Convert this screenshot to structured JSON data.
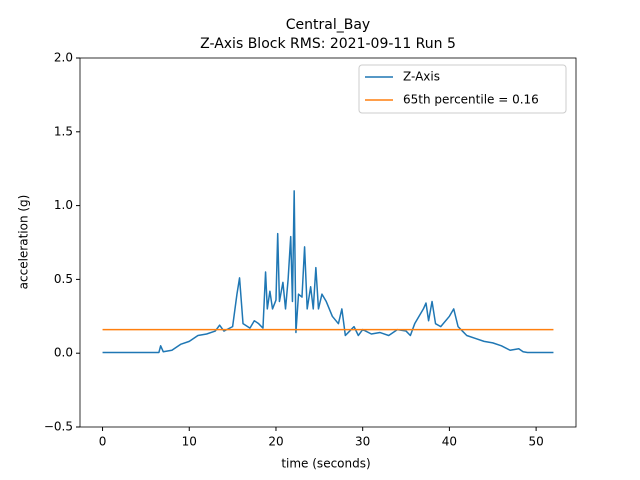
{
  "chart_data": {
    "type": "line",
    "title": "Central_Bay",
    "subtitle": "Z-Axis Block RMS: 2021-09-11 Run 5",
    "x_label": "time (seconds)",
    "y_label": "acceleration (g)",
    "xlim": [
      -2.6,
      54.6
    ],
    "ylim": [
      -0.5,
      2.0
    ],
    "xticks": [
      0,
      10,
      20,
      30,
      40,
      50
    ],
    "yticks": [
      {
        "value": -0.5,
        "label": "−0.5"
      },
      {
        "value": 0,
        "label": "0.0"
      },
      {
        "value": 0.5,
        "label": "0.5"
      },
      {
        "value": 1,
        "label": "1.0"
      },
      {
        "value": 1.5,
        "label": "1.5"
      },
      {
        "value": 2,
        "label": "2.0"
      }
    ],
    "grid": false,
    "legend": "upper right",
    "series": [
      {
        "name": "Z-Axis",
        "color": "#1f77b4",
        "x": [
          0,
          6.5,
          6.7,
          7,
          8,
          9,
          10,
          11,
          12,
          13,
          13.5,
          14,
          15,
          15.5,
          15.8,
          16.2,
          17,
          17.5,
          18,
          18.5,
          18.8,
          19,
          19.3,
          19.6,
          20,
          20.2,
          20.4,
          20.8,
          21.1,
          21.4,
          21.7,
          21.9,
          22.1,
          22.3,
          22.6,
          23,
          23.3,
          23.6,
          24,
          24.3,
          24.6,
          24.9,
          25.3,
          25.8,
          26.5,
          27.2,
          27.6,
          28,
          28.5,
          29,
          29.5,
          30,
          31,
          32,
          33,
          34,
          35,
          35.5,
          36,
          36.5,
          37,
          37.3,
          37.6,
          38,
          38.4,
          39,
          40,
          40.5,
          41,
          41.5,
          42,
          43,
          44,
          45,
          46,
          47,
          48,
          48.5,
          49,
          52
        ],
        "values": [
          0.005,
          0.005,
          0.05,
          0.01,
          0.02,
          0.06,
          0.08,
          0.12,
          0.13,
          0.15,
          0.19,
          0.15,
          0.18,
          0.4,
          0.51,
          0.2,
          0.17,
          0.22,
          0.2,
          0.17,
          0.55,
          0.3,
          0.42,
          0.3,
          0.36,
          0.81,
          0.35,
          0.48,
          0.3,
          0.5,
          0.79,
          0.35,
          1.1,
          0.14,
          0.4,
          0.38,
          0.72,
          0.3,
          0.45,
          0.3,
          0.58,
          0.3,
          0.4,
          0.35,
          0.25,
          0.2,
          0.3,
          0.12,
          0.15,
          0.18,
          0.12,
          0.16,
          0.13,
          0.14,
          0.12,
          0.16,
          0.15,
          0.12,
          0.2,
          0.25,
          0.3,
          0.34,
          0.22,
          0.35,
          0.2,
          0.18,
          0.25,
          0.3,
          0.18,
          0.15,
          0.12,
          0.1,
          0.08,
          0.07,
          0.05,
          0.02,
          0.03,
          0.01,
          0.005,
          0.005
        ]
      },
      {
        "name": "65th percentile = 0.16",
        "color": "#ff7f0e",
        "x": [
          0,
          52
        ],
        "values": [
          0.16,
          0.16
        ]
      }
    ]
  }
}
